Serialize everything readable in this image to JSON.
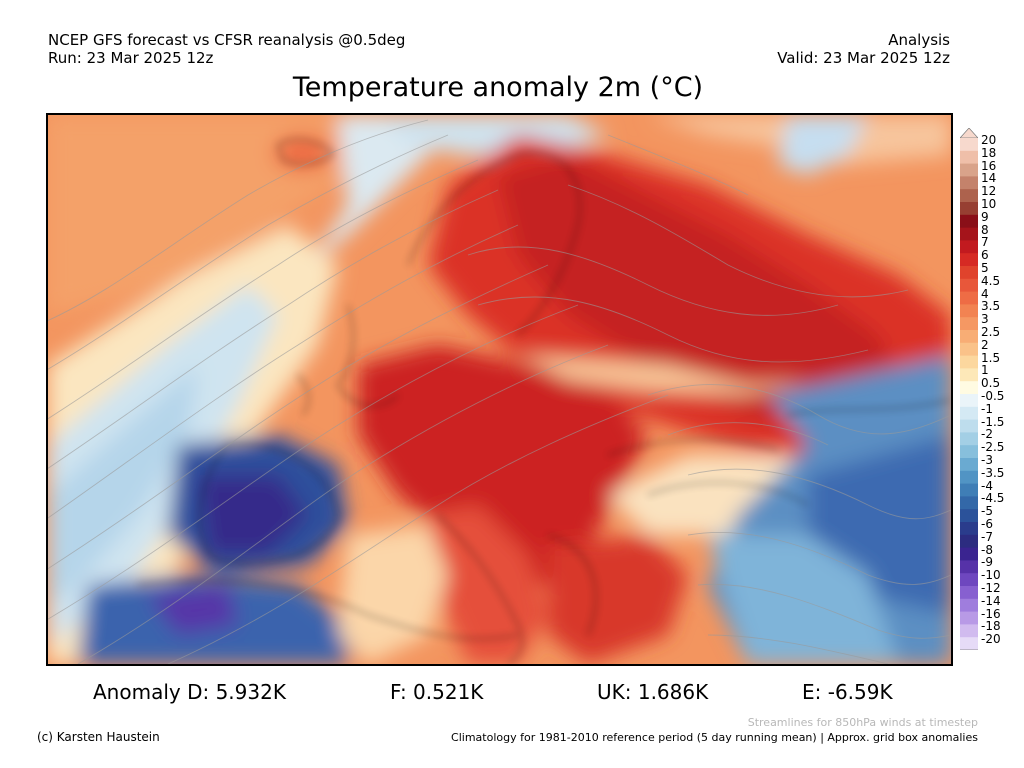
{
  "header": {
    "line1": "NCEP GFS forecast vs CFSR reanalysis @0.5deg",
    "line2": "Run: 23 Mar 2025 12z",
    "right1": "Analysis",
    "right2": "Valid: 23 Mar 2025 12z"
  },
  "title": "Temperature anomaly 2m (°C)",
  "colorbar": {
    "labels": [
      "20",
      "18",
      "16",
      "14",
      "12",
      "10",
      "9",
      "8",
      "7",
      "6",
      "5",
      "4.5",
      "4",
      "3.5",
      "3",
      "2.5",
      "2",
      "1.5",
      "1",
      "0.5",
      "-0.5",
      "-1",
      "-1.5",
      "-2",
      "-2.5",
      "-3",
      "-3.5",
      "-4",
      "-4.5",
      "-5",
      "-6",
      "-7",
      "-8",
      "-9",
      "-10",
      "-12",
      "-14",
      "-16",
      "-18",
      "-20"
    ],
    "colors": [
      "#f7d9cd",
      "#efbfa9",
      "#d9a38a",
      "#c4826b",
      "#ad624d",
      "#973f32",
      "#8a0f18",
      "#a5141b",
      "#c21a1f",
      "#d62a24",
      "#e0432c",
      "#e8573a",
      "#ee6c45",
      "#f28352",
      "#f59863",
      "#f8ad75",
      "#fac289",
      "#fcd79e",
      "#fde8b8",
      "#fffbe2",
      "#eaf4f9",
      "#d4e9f4",
      "#bedded",
      "#a3cfe5",
      "#87bfdc",
      "#6aaad1",
      "#5194c4",
      "#3f7eb6",
      "#3368a8",
      "#2b529a",
      "#2a3c8c",
      "#2c2c80",
      "#3a2490",
      "#5632a8",
      "#6e47bf",
      "#8760d0",
      "#9f7ddd",
      "#b89ae6",
      "#d1bbef",
      "#e6dbf7"
    ]
  },
  "stats": {
    "d": "Anomaly D: 5.932K",
    "f": "F: 0.521K",
    "uk": "UK: 1.686K",
    "e": "E: -6.59K"
  },
  "notes": {
    "streamlines": "Streamlines for 850hPa winds at timestep",
    "credit": "(c) Karsten Haustein",
    "climatology": "Climatology for 1981-2010 reference period (5 day running mean) | Approx. grid box anomalies"
  }
}
